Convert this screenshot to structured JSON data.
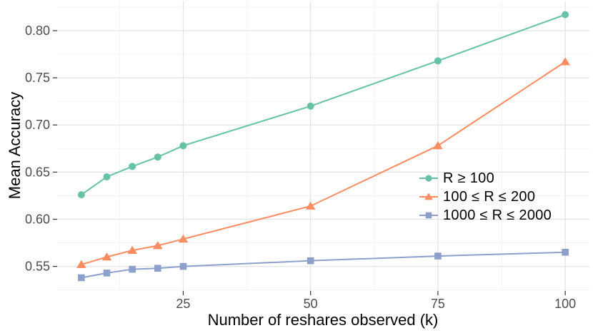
{
  "chart_data": {
    "type": "line",
    "title": "",
    "xlabel": "Number of reshares observed (k)",
    "ylabel": "Mean Accuracy",
    "x": [
      5,
      10,
      15,
      20,
      25,
      50,
      75,
      100
    ],
    "series": [
      {
        "name": "R ≥ 100",
        "marker": "circle",
        "color": "#66C2A5",
        "values": [
          0.626,
          0.645,
          0.656,
          0.666,
          0.678,
          0.72,
          0.768,
          0.817
        ]
      },
      {
        "name": "100 ≤ R ≤ 200",
        "marker": "triangle",
        "color": "#FC8D62",
        "values": [
          0.552,
          0.56,
          0.567,
          0.572,
          0.579,
          0.614,
          0.678,
          0.767
        ]
      },
      {
        "name": "1000 ≤ R ≤ 2000",
        "marker": "square",
        "color": "#8DA0CB",
        "values": [
          0.538,
          0.543,
          0.547,
          0.548,
          0.55,
          0.556,
          0.561,
          0.565
        ]
      }
    ],
    "x_ticks": {
      "values": [
        25,
        50,
        75,
        100
      ],
      "labels": [
        "25",
        "50",
        "75",
        "100"
      ]
    },
    "y_ticks": {
      "values": [
        0.55,
        0.6,
        0.65,
        0.7,
        0.75,
        0.8
      ],
      "labels": [
        "0.55",
        "0.60",
        "0.65",
        "0.70",
        "0.75",
        "0.80"
      ]
    },
    "x_minor": [
      12.5,
      37.5,
      62.5,
      87.5
    ],
    "y_minor": [
      0.525,
      0.575,
      0.625,
      0.675,
      0.725,
      0.775,
      0.825
    ],
    "xlim": [
      0.25,
      104.75
    ],
    "ylim": [
      0.524,
      0.831
    ],
    "grid": true,
    "legend_position": "right-middle"
  },
  "styles": {
    "background": "#FFFFFF",
    "grid_major": "#E4E4E4",
    "grid_minor": "#F2F2F2",
    "tick_mark": "#333333",
    "tick_label_color": "#4D4D4D",
    "axis_title_color": "#000000"
  }
}
